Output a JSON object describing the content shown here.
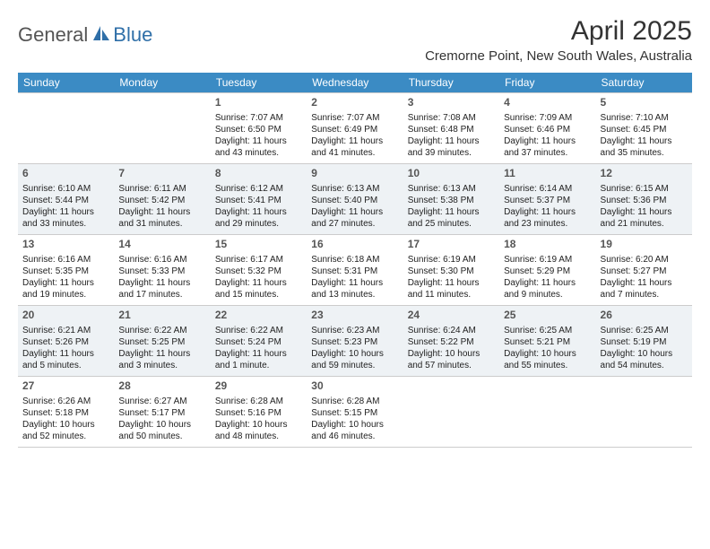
{
  "logo": {
    "word1": "General",
    "word2": "Blue"
  },
  "title": "April 2025",
  "location": "Cremorne Point, New South Wales, Australia",
  "colors": {
    "header_bg": "#3b8bc4",
    "alt_week_bg": "#eef2f5",
    "text": "#222222",
    "logo_gray": "#555555",
    "logo_blue": "#2f6fa8"
  },
  "weekdays": [
    "Sunday",
    "Monday",
    "Tuesday",
    "Wednesday",
    "Thursday",
    "Friday",
    "Saturday"
  ],
  "weeks": [
    {
      "alt": false,
      "cells": [
        {
          "blank": true
        },
        {
          "blank": true
        },
        {
          "day": "1",
          "sunrise": "Sunrise: 7:07 AM",
          "sunset": "Sunset: 6:50 PM",
          "day1": "Daylight: 11 hours",
          "day2": "and 43 minutes."
        },
        {
          "day": "2",
          "sunrise": "Sunrise: 7:07 AM",
          "sunset": "Sunset: 6:49 PM",
          "day1": "Daylight: 11 hours",
          "day2": "and 41 minutes."
        },
        {
          "day": "3",
          "sunrise": "Sunrise: 7:08 AM",
          "sunset": "Sunset: 6:48 PM",
          "day1": "Daylight: 11 hours",
          "day2": "and 39 minutes."
        },
        {
          "day": "4",
          "sunrise": "Sunrise: 7:09 AM",
          "sunset": "Sunset: 6:46 PM",
          "day1": "Daylight: 11 hours",
          "day2": "and 37 minutes."
        },
        {
          "day": "5",
          "sunrise": "Sunrise: 7:10 AM",
          "sunset": "Sunset: 6:45 PM",
          "day1": "Daylight: 11 hours",
          "day2": "and 35 minutes."
        }
      ]
    },
    {
      "alt": true,
      "cells": [
        {
          "day": "6",
          "sunrise": "Sunrise: 6:10 AM",
          "sunset": "Sunset: 5:44 PM",
          "day1": "Daylight: 11 hours",
          "day2": "and 33 minutes."
        },
        {
          "day": "7",
          "sunrise": "Sunrise: 6:11 AM",
          "sunset": "Sunset: 5:42 PM",
          "day1": "Daylight: 11 hours",
          "day2": "and 31 minutes."
        },
        {
          "day": "8",
          "sunrise": "Sunrise: 6:12 AM",
          "sunset": "Sunset: 5:41 PM",
          "day1": "Daylight: 11 hours",
          "day2": "and 29 minutes."
        },
        {
          "day": "9",
          "sunrise": "Sunrise: 6:13 AM",
          "sunset": "Sunset: 5:40 PM",
          "day1": "Daylight: 11 hours",
          "day2": "and 27 minutes."
        },
        {
          "day": "10",
          "sunrise": "Sunrise: 6:13 AM",
          "sunset": "Sunset: 5:38 PM",
          "day1": "Daylight: 11 hours",
          "day2": "and 25 minutes."
        },
        {
          "day": "11",
          "sunrise": "Sunrise: 6:14 AM",
          "sunset": "Sunset: 5:37 PM",
          "day1": "Daylight: 11 hours",
          "day2": "and 23 minutes."
        },
        {
          "day": "12",
          "sunrise": "Sunrise: 6:15 AM",
          "sunset": "Sunset: 5:36 PM",
          "day1": "Daylight: 11 hours",
          "day2": "and 21 minutes."
        }
      ]
    },
    {
      "alt": false,
      "cells": [
        {
          "day": "13",
          "sunrise": "Sunrise: 6:16 AM",
          "sunset": "Sunset: 5:35 PM",
          "day1": "Daylight: 11 hours",
          "day2": "and 19 minutes."
        },
        {
          "day": "14",
          "sunrise": "Sunrise: 6:16 AM",
          "sunset": "Sunset: 5:33 PM",
          "day1": "Daylight: 11 hours",
          "day2": "and 17 minutes."
        },
        {
          "day": "15",
          "sunrise": "Sunrise: 6:17 AM",
          "sunset": "Sunset: 5:32 PM",
          "day1": "Daylight: 11 hours",
          "day2": "and 15 minutes."
        },
        {
          "day": "16",
          "sunrise": "Sunrise: 6:18 AM",
          "sunset": "Sunset: 5:31 PM",
          "day1": "Daylight: 11 hours",
          "day2": "and 13 minutes."
        },
        {
          "day": "17",
          "sunrise": "Sunrise: 6:19 AM",
          "sunset": "Sunset: 5:30 PM",
          "day1": "Daylight: 11 hours",
          "day2": "and 11 minutes."
        },
        {
          "day": "18",
          "sunrise": "Sunrise: 6:19 AM",
          "sunset": "Sunset: 5:29 PM",
          "day1": "Daylight: 11 hours",
          "day2": "and 9 minutes."
        },
        {
          "day": "19",
          "sunrise": "Sunrise: 6:20 AM",
          "sunset": "Sunset: 5:27 PM",
          "day1": "Daylight: 11 hours",
          "day2": "and 7 minutes."
        }
      ]
    },
    {
      "alt": true,
      "cells": [
        {
          "day": "20",
          "sunrise": "Sunrise: 6:21 AM",
          "sunset": "Sunset: 5:26 PM",
          "day1": "Daylight: 11 hours",
          "day2": "and 5 minutes."
        },
        {
          "day": "21",
          "sunrise": "Sunrise: 6:22 AM",
          "sunset": "Sunset: 5:25 PM",
          "day1": "Daylight: 11 hours",
          "day2": "and 3 minutes."
        },
        {
          "day": "22",
          "sunrise": "Sunrise: 6:22 AM",
          "sunset": "Sunset: 5:24 PM",
          "day1": "Daylight: 11 hours",
          "day2": "and 1 minute."
        },
        {
          "day": "23",
          "sunrise": "Sunrise: 6:23 AM",
          "sunset": "Sunset: 5:23 PM",
          "day1": "Daylight: 10 hours",
          "day2": "and 59 minutes."
        },
        {
          "day": "24",
          "sunrise": "Sunrise: 6:24 AM",
          "sunset": "Sunset: 5:22 PM",
          "day1": "Daylight: 10 hours",
          "day2": "and 57 minutes."
        },
        {
          "day": "25",
          "sunrise": "Sunrise: 6:25 AM",
          "sunset": "Sunset: 5:21 PM",
          "day1": "Daylight: 10 hours",
          "day2": "and 55 minutes."
        },
        {
          "day": "26",
          "sunrise": "Sunrise: 6:25 AM",
          "sunset": "Sunset: 5:19 PM",
          "day1": "Daylight: 10 hours",
          "day2": "and 54 minutes."
        }
      ]
    },
    {
      "alt": false,
      "cells": [
        {
          "day": "27",
          "sunrise": "Sunrise: 6:26 AM",
          "sunset": "Sunset: 5:18 PM",
          "day1": "Daylight: 10 hours",
          "day2": "and 52 minutes."
        },
        {
          "day": "28",
          "sunrise": "Sunrise: 6:27 AM",
          "sunset": "Sunset: 5:17 PM",
          "day1": "Daylight: 10 hours",
          "day2": "and 50 minutes."
        },
        {
          "day": "29",
          "sunrise": "Sunrise: 6:28 AM",
          "sunset": "Sunset: 5:16 PM",
          "day1": "Daylight: 10 hours",
          "day2": "and 48 minutes."
        },
        {
          "day": "30",
          "sunrise": "Sunrise: 6:28 AM",
          "sunset": "Sunset: 5:15 PM",
          "day1": "Daylight: 10 hours",
          "day2": "and 46 minutes."
        },
        {
          "blank": true
        },
        {
          "blank": true
        },
        {
          "blank": true
        }
      ]
    }
  ]
}
